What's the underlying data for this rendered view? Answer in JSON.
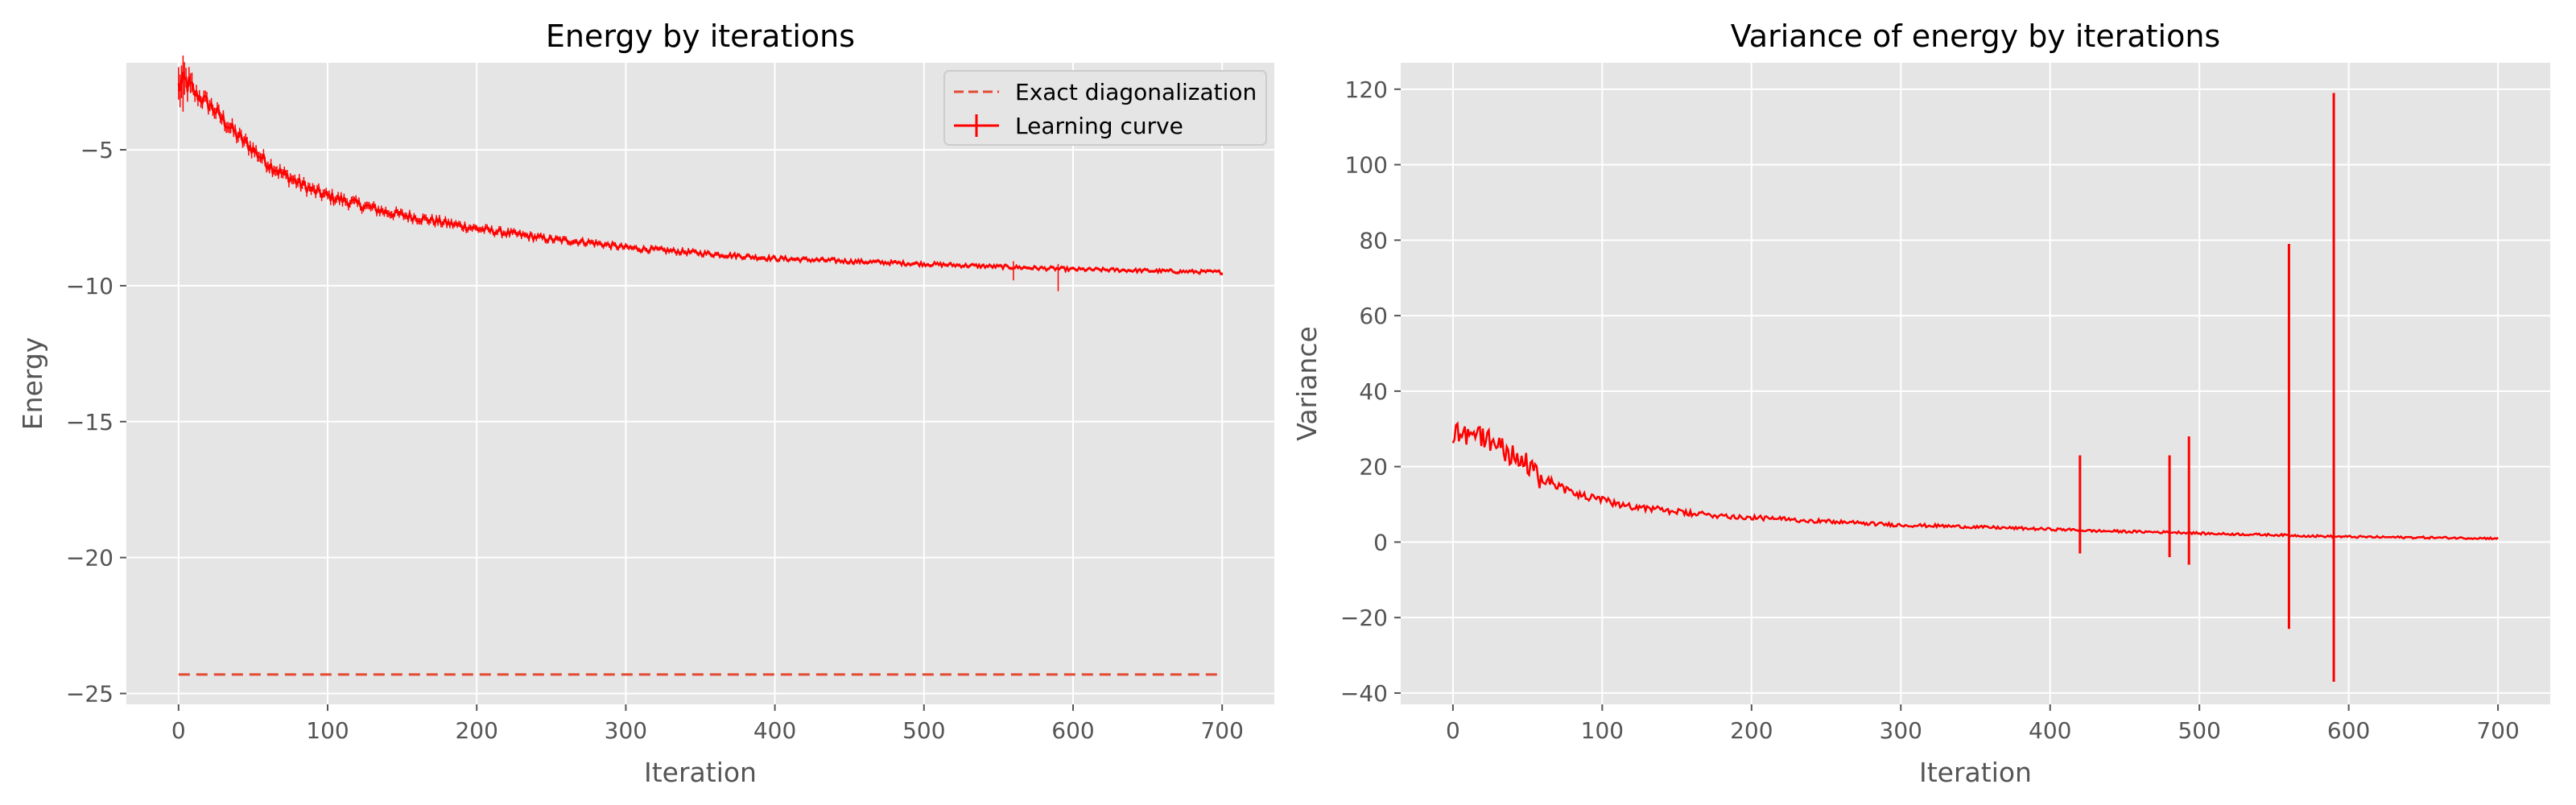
{
  "chart_data": [
    {
      "type": "line",
      "title": "Energy by iterations",
      "xlabel": "Iteration",
      "ylabel": "Energy",
      "xlim": [
        -35,
        735
      ],
      "ylim": [
        -25.4,
        -1.8
      ],
      "xticks": [
        0,
        100,
        200,
        300,
        400,
        500,
        600,
        700
      ],
      "yticks": [
        -25,
        -20,
        -15,
        -10,
        -5
      ],
      "grid": true,
      "legend": "top-right",
      "series": [
        {
          "name": "Exact diagonalization",
          "style": "dashed",
          "x": [
            0,
            700
          ],
          "y": [
            -24.3,
            -24.3
          ]
        },
        {
          "name": "Learning curve",
          "style": "solid-with-errorbars",
          "x": [
            0,
            5,
            10,
            20,
            30,
            40,
            50,
            60,
            70,
            80,
            90,
            100,
            120,
            140,
            160,
            180,
            200,
            225,
            250,
            275,
            300,
            325,
            350,
            375,
            400,
            425,
            450,
            475,
            500,
            525,
            550,
            575,
            600,
            625,
            650,
            675,
            700
          ],
          "y": [
            -2.7,
            -2.5,
            -2.9,
            -3.3,
            -3.9,
            -4.5,
            -5.0,
            -5.5,
            -5.9,
            -6.2,
            -6.5,
            -6.7,
            -7.0,
            -7.3,
            -7.5,
            -7.7,
            -7.9,
            -8.1,
            -8.3,
            -8.4,
            -8.6,
            -8.7,
            -8.8,
            -8.9,
            -9.0,
            -9.05,
            -9.1,
            -9.15,
            -9.2,
            -9.25,
            -9.3,
            -9.35,
            -9.4,
            -9.42,
            -9.45,
            -9.48,
            -9.5
          ]
        }
      ]
    },
    {
      "type": "line",
      "title": "Variance of energy by iterations",
      "xlabel": "Iteration",
      "ylabel": "Variance",
      "xlim": [
        -35,
        735
      ],
      "ylim": [
        -43,
        127
      ],
      "xticks": [
        0,
        100,
        200,
        300,
        400,
        500,
        600,
        700
      ],
      "yticks": [
        -40,
        -20,
        0,
        20,
        40,
        60,
        80,
        100,
        120
      ],
      "grid": true,
      "series": [
        {
          "name": "",
          "x": [
            0,
            5,
            10,
            20,
            30,
            40,
            50,
            60,
            70,
            80,
            90,
            100,
            120,
            140,
            160,
            180,
            200,
            225,
            250,
            275,
            300,
            325,
            350,
            375,
            400,
            420,
            425,
            450,
            480,
            493,
            500,
            525,
            550,
            560,
            575,
            590,
            600,
            625,
            650,
            675,
            700
          ],
          "y": [
            28,
            30,
            29,
            28,
            26,
            23,
            20,
            17,
            15,
            13,
            12,
            11,
            9.5,
            8.5,
            7.5,
            7.0,
            6.5,
            6.0,
            5.5,
            5.0,
            4.5,
            4.3,
            4.0,
            3.7,
            3.4,
            3.2,
            3.0,
            2.8,
            2.6,
            2.5,
            2.3,
            2.1,
            1.9,
            1.8,
            1.6,
            1.5,
            1.4,
            1.3,
            1.2,
            1.1,
            1.0
          ],
          "spikes": [
            {
              "x": 420,
              "high": 23,
              "low": -3
            },
            {
              "x": 480,
              "high": 23,
              "low": -4
            },
            {
              "x": 493,
              "high": 28,
              "low": -6
            },
            {
              "x": 560,
              "high": 79,
              "low": -23
            },
            {
              "x": 590,
              "high": 119,
              "low": -37
            }
          ]
        }
      ]
    }
  ]
}
